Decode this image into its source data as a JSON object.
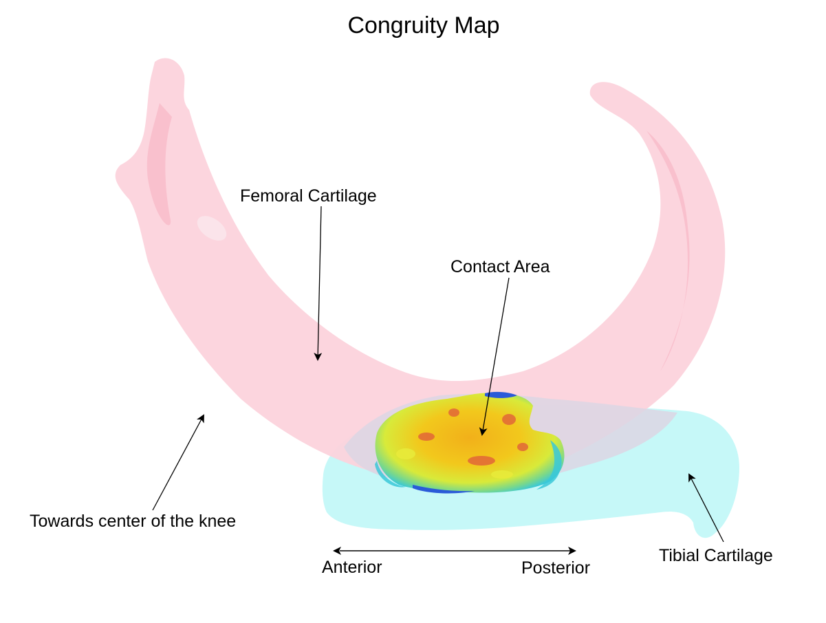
{
  "title": "Congruity Map",
  "labels": {
    "femoral": "Femoral Cartilage",
    "contact": "Contact Area",
    "center": "Towards center of the knee",
    "tibial": "Tibial Cartilage",
    "anterior": "Anterior",
    "posterior": "Posterior"
  },
  "colors": {
    "femoral_cartilage": "#fcd3dc",
    "femoral_shade": "#f8b7c6",
    "tibial_cartilage": "#c6f8f8",
    "overlap": "#dcd6e4",
    "contact_hot": "#f2c21a",
    "contact_warm": "#e8ea3a",
    "contact_red": "#e0603a",
    "contact_cool": "#3ac8d8",
    "contact_blue": "#2a5ad8"
  }
}
